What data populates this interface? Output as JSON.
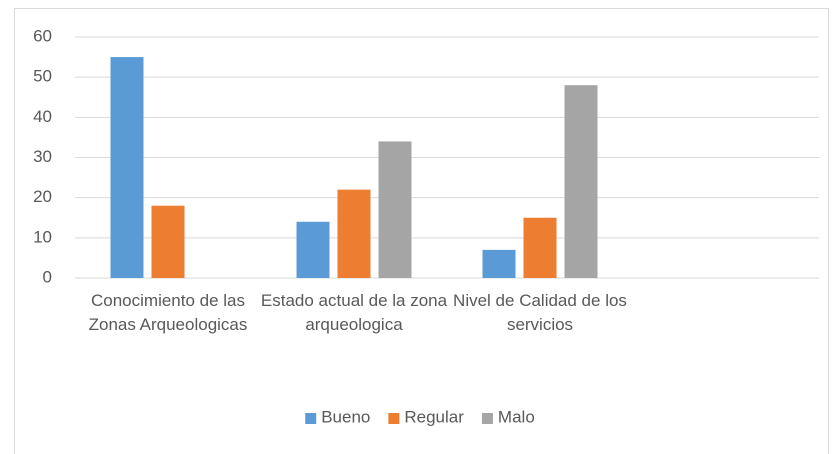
{
  "chart_data": {
    "type": "bar",
    "categories": [
      "Conocimiento de las Zonas Arqueologicas",
      "Estado actual de la zona arqueologica",
      "Nivel de Calidad de los servicios",
      null
    ],
    "series": [
      {
        "name": "Bueno",
        "color": "#5b9bd5",
        "values": [
          55,
          14,
          7,
          null
        ]
      },
      {
        "name": "Regular",
        "color": "#ed7d31",
        "values": [
          18,
          22,
          15,
          null
        ]
      },
      {
        "name": "Malo",
        "color": "#a5a5a5",
        "values": [
          null,
          34,
          48,
          null
        ]
      }
    ],
    "ylim": [
      0,
      60
    ],
    "yticks": [
      0,
      10,
      20,
      30,
      40,
      50,
      60
    ],
    "grid": true,
    "legend": "bottom"
  }
}
